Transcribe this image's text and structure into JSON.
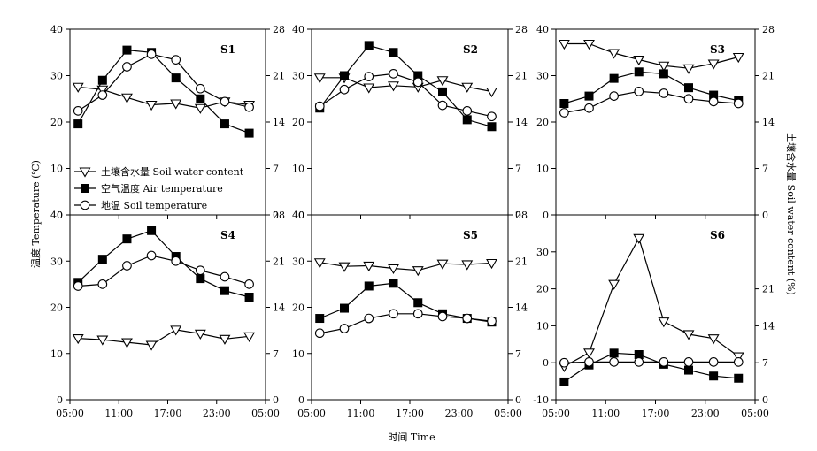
{
  "figure": {
    "xlabel": "时间 Time",
    "ylabel_left": "温度 Temperature (℃)",
    "ylabel_right": "土壤含水量 Soil water content (%)",
    "xticks": [
      "05:00",
      "11:00",
      "17:00",
      "23:00",
      "05:00"
    ]
  },
  "legend": {
    "placement": "inside panel S1, lower-left",
    "entries": [
      {
        "series": "soil_water",
        "label": "土壤含水量 Soil water content",
        "marker": "triangle-down-open"
      },
      {
        "series": "air_temp",
        "label": "空气温度 Air temperature",
        "marker": "square-filled"
      },
      {
        "series": "soil_temp",
        "label": "地温 Soil temperature",
        "marker": "circle-open"
      }
    ]
  },
  "chart_data": [
    {
      "type": "line",
      "panel": "S1",
      "title": "S1",
      "x": [
        6,
        9,
        12,
        15,
        18,
        21,
        24,
        27
      ],
      "ylim_left": [
        0,
        40
      ],
      "yticks_left": [
        0,
        10,
        20,
        30,
        40
      ],
      "ylim_right": [
        0,
        28
      ],
      "yticks_right": [
        0,
        7,
        14,
        21,
        28
      ],
      "series": [
        {
          "id": "soil_water",
          "axis": "right",
          "values": [
            19.3,
            18.9,
            17.7,
            16.6,
            16.8,
            16.1,
            17.1,
            16.6
          ]
        },
        {
          "id": "air_temp",
          "axis": "left",
          "values": [
            19.6,
            29.0,
            35.5,
            35.0,
            29.5,
            25.0,
            19.6,
            17.6
          ]
        },
        {
          "id": "soil_temp",
          "axis": "left",
          "values": [
            22.4,
            25.8,
            31.9,
            34.6,
            33.4,
            27.2,
            24.4,
            23.2
          ]
        }
      ]
    },
    {
      "type": "line",
      "panel": "S2",
      "title": "S2",
      "x": [
        6,
        9,
        12,
        15,
        18,
        21,
        24,
        27
      ],
      "ylim_left": [
        0,
        40
      ],
      "yticks_left": [
        0,
        10,
        20,
        30,
        40
      ],
      "ylim_right": [
        0,
        28
      ],
      "yticks_right": [
        0,
        7,
        14,
        21,
        28
      ],
      "series": [
        {
          "id": "soil_water",
          "axis": "right",
          "values": [
            20.7,
            20.7,
            19.2,
            19.5,
            19.3,
            20.3,
            19.3,
            18.6
          ]
        },
        {
          "id": "air_temp",
          "axis": "left",
          "values": [
            23.0,
            30.0,
            36.5,
            35.0,
            30.0,
            26.5,
            20.5,
            19.0
          ]
        },
        {
          "id": "soil_temp",
          "axis": "left",
          "values": [
            23.4,
            27.0,
            29.8,
            30.4,
            28.6,
            23.6,
            22.4,
            21.2
          ]
        }
      ]
    },
    {
      "type": "line",
      "panel": "S3",
      "title": "S3",
      "x": [
        6,
        9,
        12,
        15,
        18,
        21,
        24,
        27
      ],
      "ylim_left": [
        0,
        40
      ],
      "yticks_left": [
        0,
        10,
        20,
        30,
        40
      ],
      "ylim_right": [
        0,
        28
      ],
      "yticks_right": [
        0,
        7,
        14,
        21,
        28
      ],
      "series": [
        {
          "id": "soil_water",
          "axis": "right",
          "values": [
            25.8,
            25.8,
            24.4,
            23.4,
            22.5,
            22.1,
            22.8,
            23.8
          ]
        },
        {
          "id": "air_temp",
          "axis": "left",
          "values": [
            24.0,
            25.6,
            29.4,
            30.8,
            30.4,
            27.4,
            25.8,
            24.6
          ]
        },
        {
          "id": "soil_temp",
          "axis": "left",
          "values": [
            22.0,
            23.0,
            25.6,
            26.6,
            26.2,
            25.0,
            24.4,
            24.0
          ]
        }
      ]
    },
    {
      "type": "line",
      "panel": "S4",
      "title": "S4",
      "x": [
        6,
        9,
        12,
        15,
        18,
        21,
        24,
        27
      ],
      "ylim_left": [
        0,
        40
      ],
      "yticks_left": [
        0,
        10,
        20,
        30,
        40
      ],
      "ylim_right": [
        0,
        28
      ],
      "yticks_right": [
        0,
        7,
        14,
        21,
        28
      ],
      "series": [
        {
          "id": "soil_water",
          "axis": "right",
          "values": [
            9.3,
            9.1,
            8.7,
            8.3,
            10.6,
            10.0,
            9.2,
            9.6
          ]
        },
        {
          "id": "air_temp",
          "axis": "left",
          "values": [
            25.4,
            30.4,
            34.8,
            36.6,
            31.0,
            26.2,
            23.6,
            22.2
          ]
        },
        {
          "id": "soil_temp",
          "axis": "left",
          "values": [
            24.6,
            25.0,
            29.0,
            31.2,
            30.0,
            28.0,
            26.6,
            25.0
          ]
        }
      ]
    },
    {
      "type": "line",
      "panel": "S5",
      "title": "S5",
      "x": [
        6,
        9,
        12,
        15,
        18,
        21,
        24,
        27
      ],
      "ylim_left": [
        0,
        40
      ],
      "yticks_left": [
        0,
        10,
        20,
        30,
        40
      ],
      "ylim_right": [
        0,
        28
      ],
      "yticks_right": [
        0,
        7,
        14,
        21,
        28
      ],
      "series": [
        {
          "id": "soil_water",
          "axis": "right",
          "values": [
            20.8,
            20.2,
            20.3,
            19.9,
            19.6,
            20.6,
            20.5,
            20.7
          ]
        },
        {
          "id": "air_temp",
          "axis": "left",
          "values": [
            17.6,
            19.8,
            24.6,
            25.2,
            21.0,
            18.6,
            17.6,
            16.8
          ]
        },
        {
          "id": "soil_temp",
          "axis": "left",
          "values": [
            14.4,
            15.4,
            17.6,
            18.6,
            18.6,
            18.0,
            17.6,
            17.0
          ]
        }
      ]
    },
    {
      "type": "line",
      "panel": "S6",
      "title": "S6",
      "x": [
        6,
        9,
        12,
        15,
        18,
        21,
        24,
        27
      ],
      "ylim_left": [
        -10,
        40
      ],
      "yticks_left": [
        -10,
        0,
        10,
        20,
        30
      ],
      "ylim_right": [
        0,
        35
      ],
      "yticks_right": [
        0,
        7,
        14,
        21
      ],
      "series": [
        {
          "id": "soil_water",
          "axis": "right",
          "values": [
            6.3,
            8.9,
            21.9,
            30.6,
            14.8,
            12.4,
            11.6,
            8.2
          ]
        },
        {
          "id": "air_temp",
          "axis": "left",
          "values": [
            -5.2,
            -0.6,
            2.6,
            2.2,
            -0.4,
            -2.0,
            -3.6,
            -4.2
          ]
        },
        {
          "id": "soil_temp",
          "axis": "left",
          "values": [
            0.0,
            0.2,
            0.2,
            0.2,
            0.2,
            0.2,
            0.2,
            0.2
          ]
        }
      ]
    }
  ]
}
